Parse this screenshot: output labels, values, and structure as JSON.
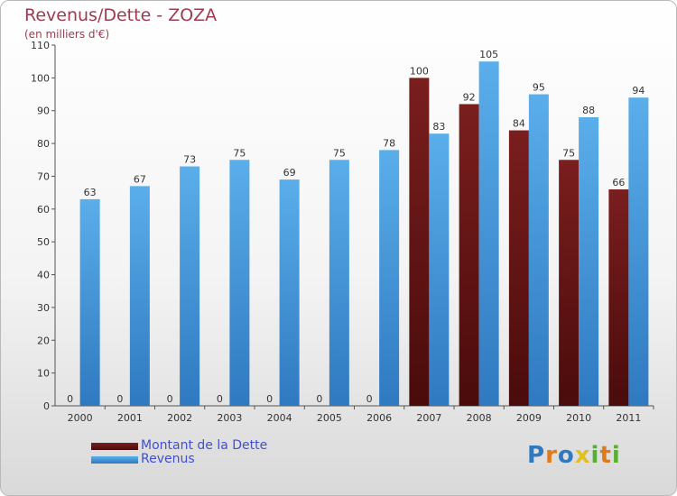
{
  "colors": {
    "dette": "#7a1e1e",
    "dette_dark": "#4a0b0b",
    "revenus": "#5aaeea",
    "revenus_dark": "#2f79c0",
    "title": "#a03a50",
    "legend_text": "#4050d0",
    "axis_text": "#333333"
  },
  "chart_data": {
    "type": "bar",
    "title": "Revenus/Dette - ZOZA",
    "subtitle": "(en milliers d'€)",
    "categories": [
      "2000",
      "2001",
      "2002",
      "2003",
      "2004",
      "2005",
      "2006",
      "2007",
      "2008",
      "2009",
      "2010",
      "2011"
    ],
    "series": [
      {
        "name": "Montant de la Dette",
        "values": [
          0,
          0,
          0,
          0,
          0,
          0,
          0,
          100,
          92,
          84,
          75,
          66
        ]
      },
      {
        "name": "Revenus",
        "values": [
          63,
          67,
          73,
          75,
          69,
          75,
          78,
          83,
          105,
          95,
          88,
          94
        ]
      }
    ],
    "ylim": [
      0,
      110
    ],
    "yticks": [
      0,
      10,
      20,
      30,
      40,
      50,
      60,
      70,
      80,
      90,
      100,
      110
    ],
    "grid": false,
    "legend_position": "bottom-left"
  },
  "logo": {
    "letters": [
      "P",
      "r",
      "o",
      "x",
      "i",
      "t",
      "i"
    ],
    "colors": [
      "#2f79c0",
      "#e07a1a",
      "#2f79c0",
      "#e0c020",
      "#58b030",
      "#e07a1a",
      "#58b030"
    ]
  }
}
